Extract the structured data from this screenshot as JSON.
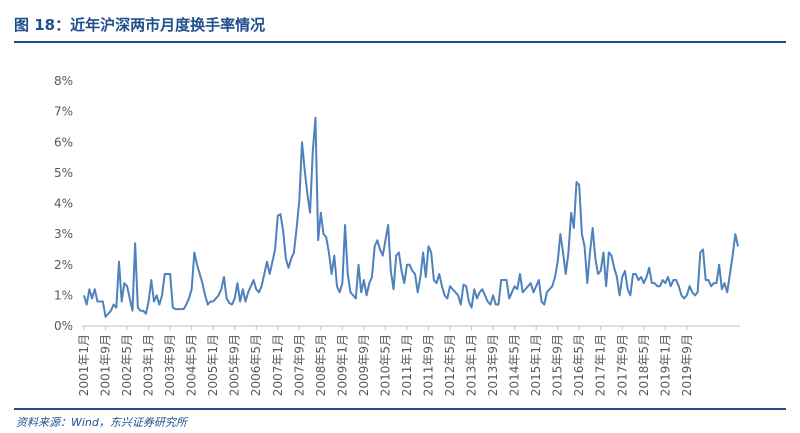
{
  "header": {
    "title": "图 18：近年沪深两市月度换手率情况"
  },
  "footer": {
    "source": "资料来源：Wind，东兴证券研究所"
  },
  "colors": {
    "line": "#4f81bd",
    "accent": "#1f4e8c",
    "axis": "#bfbfbf"
  },
  "chart_data": {
    "type": "line",
    "title": "",
    "xlabel": "",
    "ylabel": "",
    "ylim": [
      0,
      8
    ],
    "yticks": [
      "0%",
      "1%",
      "2%",
      "3%",
      "4%",
      "5%",
      "6%",
      "7%",
      "8%"
    ],
    "grid": false,
    "xticks": [
      "2001年1月",
      "2001年9月",
      "2002年5月",
      "2003年1月",
      "2003年9月",
      "2004年5月",
      "2005年1月",
      "2005年9月",
      "2006年5月",
      "2007年1月",
      "2007年9月",
      "2008年5月",
      "2009年1月",
      "2009年9月",
      "2010年5月",
      "2011年1月",
      "2011年9月",
      "2012年5月",
      "2013年1月",
      "2013年9月",
      "2014年5月",
      "2015年1月",
      "2015年9月",
      "2016年5月",
      "2017年1月",
      "2017年9月",
      "2018年5月",
      "2019年1月",
      "2019年9月"
    ],
    "x_start": "2001年1月",
    "x_end": "2019年12月",
    "series": [
      {
        "values": [
          1.0,
          0.7,
          1.2,
          0.9,
          1.2,
          0.8,
          0.8,
          0.8,
          0.3,
          0.4,
          0.5,
          0.7,
          0.6,
          2.1,
          0.8,
          1.4,
          1.3,
          0.9,
          0.5,
          2.7,
          0.6,
          0.5,
          0.5,
          0.4,
          0.8,
          1.5,
          0.8,
          1.0,
          0.7,
          1.0,
          1.7,
          1.7,
          1.7,
          0.6,
          0.55,
          0.55,
          0.55,
          0.55,
          0.7,
          0.9,
          1.2,
          2.4,
          2.0,
          1.7,
          1.4,
          1.0,
          0.7,
          0.8,
          0.8,
          0.9,
          1.0,
          1.2,
          1.6,
          0.9,
          0.75,
          0.7,
          0.9,
          1.4,
          0.8,
          1.2,
          0.8,
          1.1,
          1.3,
          1.5,
          1.2,
          1.1,
          1.3,
          1.7,
          2.1,
          1.7,
          2.1,
          2.5,
          3.6,
          3.65,
          3.1,
          2.2,
          1.9,
          2.2,
          2.4,
          3.2,
          4.1,
          6.0,
          5.1,
          4.3,
          3.7,
          5.7,
          6.8,
          2.8,
          3.7,
          3.0,
          2.9,
          2.4,
          1.7,
          2.3,
          1.3,
          1.1,
          1.4,
          3.3,
          1.7,
          1.1,
          1.0,
          0.9,
          2.0,
          1.1,
          1.5,
          1.0,
          1.4,
          1.6,
          2.6,
          2.8,
          2.5,
          2.3,
          2.8,
          3.3,
          1.8,
          1.2,
          2.3,
          2.4,
          1.8,
          1.4,
          2.0,
          2.0,
          1.8,
          1.7,
          1.1,
          1.6,
          2.4,
          1.6,
          2.6,
          2.4,
          1.5,
          1.4,
          1.7,
          1.3,
          1.0,
          0.9,
          1.3,
          1.2,
          1.1,
          1.0,
          0.7,
          1.35,
          1.3,
          0.8,
          0.6,
          1.2,
          0.9,
          1.1,
          1.2,
          1.0,
          0.8,
          0.7,
          1.0,
          0.7,
          0.7,
          1.5,
          1.5,
          1.5,
          0.9,
          1.1,
          1.3,
          1.2,
          1.7,
          1.1,
          1.2,
          1.3,
          1.4,
          1.1,
          1.3,
          1.5,
          0.8,
          0.7,
          1.1,
          1.2,
          1.3,
          1.6,
          2.1,
          3.0,
          2.4,
          1.7,
          2.4,
          3.7,
          3.2,
          4.7,
          4.6,
          3.0,
          2.6,
          1.4,
          2.4,
          3.2,
          2.2,
          1.7,
          1.8,
          2.4,
          1.3,
          2.4,
          2.3,
          1.9,
          1.6,
          1.0,
          1.6,
          1.8,
          1.2,
          1.0,
          1.7,
          1.7,
          1.5,
          1.6,
          1.4,
          1.6,
          1.9,
          1.4,
          1.4,
          1.3,
          1.3,
          1.5,
          1.4,
          1.6,
          1.3,
          1.5,
          1.5,
          1.3,
          1.0,
          0.9,
          1.0,
          1.3,
          1.1,
          1.0,
          1.1,
          2.4,
          2.5,
          1.5,
          1.5,
          1.3,
          1.4,
          1.4,
          2.0,
          1.2,
          1.4,
          1.1,
          1.7,
          2.3,
          3.0,
          2.6
        ]
      }
    ]
  }
}
